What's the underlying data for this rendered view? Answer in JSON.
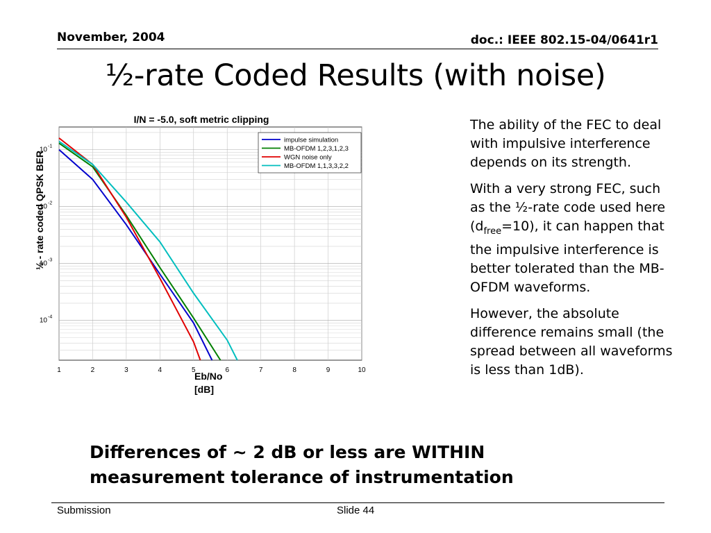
{
  "header": {
    "date": "November, 2004",
    "doc": "doc.: IEEE 802.15-04/0641r1"
  },
  "slide_title": "½-rate Coded Results (with noise)",
  "bullets": {
    "p1": "The ability of the FEC to deal with impulsive interference depends on its strength.",
    "p2_a": "With a very strong FEC, such as the ½-rate code used here (d",
    "p2_sub": "free",
    "p2_b": "=10), it can happen that the impulsive interference is better tolerated than the MB-OFDM waveforms.",
    "p3": "However, the absolute difference remains small (the spread between all waveforms is less than 1dB)."
  },
  "emphasis": "Differences of ~ 2 dB or less are WITHIN measurement tolerance of instrumentation",
  "footer": {
    "left": "Submission",
    "slide": "Slide 44"
  },
  "chart_data": {
    "type": "line",
    "title": "I/N = -5.0, soft metric clipping",
    "xlabel_line1": "Eb/No",
    "xlabel_line2": "[dB]",
    "ylabel": "½ - rate coded QPSK BER",
    "y_scale": "log",
    "xlim": [
      1,
      10
    ],
    "ylim": [
      2e-05,
      0.25
    ],
    "x_ticks": [
      "1",
      "2",
      "3",
      "4",
      "5",
      "6",
      "7",
      "8",
      "9",
      "10"
    ],
    "y_ticks": [
      {
        "value": 0.1,
        "base": "10",
        "exp": "-1"
      },
      {
        "value": 0.01,
        "base": "10",
        "exp": "-2"
      },
      {
        "value": 0.001,
        "base": "10",
        "exp": "-3"
      },
      {
        "value": 0.0001,
        "base": "10",
        "exp": "-4"
      }
    ],
    "grid": true,
    "legend_position": "top-right",
    "series": [
      {
        "name": "impulse simulation",
        "color": "#0000cc",
        "x": [
          1,
          2,
          3,
          4,
          5,
          5.55
        ],
        "y": [
          0.1,
          0.03,
          0.0048,
          0.00065,
          9e-05,
          2e-05
        ]
      },
      {
        "name": "MB-OFDM 1,2,3,1,2,3",
        "color": "#007f00",
        "x": [
          1,
          2,
          3,
          4,
          5,
          5.8
        ],
        "y": [
          0.13,
          0.05,
          0.007,
          0.00085,
          0.00011,
          2e-05
        ]
      },
      {
        "name": "WGN noise only",
        "color": "#e00000",
        "x": [
          1,
          2,
          3,
          4,
          5,
          5.2
        ],
        "y": [
          0.16,
          0.055,
          0.0065,
          0.00055,
          4.2e-05,
          2e-05
        ]
      },
      {
        "name": "MB-OFDM 1,1,3,3,2,2",
        "color": "#00bebe",
        "x": [
          1,
          2,
          3,
          4,
          5,
          6,
          6.3
        ],
        "y": [
          0.14,
          0.055,
          0.012,
          0.0024,
          0.0003,
          4.5e-05,
          2e-05
        ]
      }
    ]
  }
}
